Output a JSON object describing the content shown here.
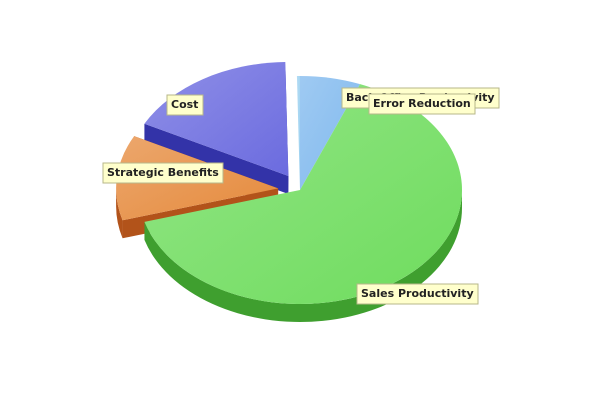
{
  "chart_data": {
    "type": "pie",
    "title": "",
    "three_d": true,
    "slices": [
      {
        "label": "Back Office Productivity",
        "value": 6,
        "color": "#7fb8ee",
        "side": "#4f8fcf"
      },
      {
        "label": "Sales Productivity",
        "value": 64,
        "color": "#6fdc5e",
        "side": "#3f9f2f"
      },
      {
        "label": "Strategic Benefits",
        "value": 12,
        "color": "#e58a3c",
        "side": "#b2531a",
        "exploded": true
      },
      {
        "label": "Cost",
        "value": 17,
        "color": "#6b6bdf",
        "side": "#3333a8",
        "exploded": true
      },
      {
        "label": "Error Reduction",
        "value": 0.3,
        "color": "#9bd0f0",
        "side": "#5c9cc8"
      }
    ]
  }
}
